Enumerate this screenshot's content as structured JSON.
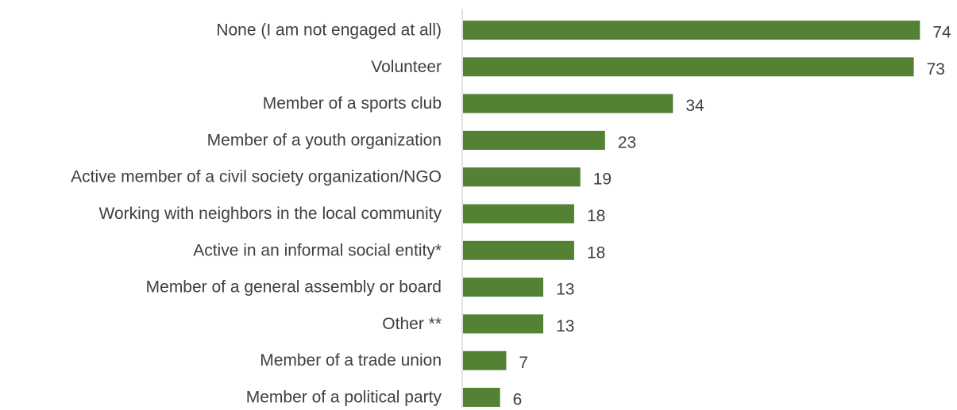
{
  "chart_data": {
    "type": "bar",
    "orientation": "horizontal",
    "categories": [
      "None (I am not engaged at all)",
      "Volunteer",
      "Member of a sports club",
      "Member of a youth organization",
      "Active member of a civil society organization/NGO",
      "Working with neighbors in the local community",
      "Active in an informal social entity*",
      "Member of a general assembly or board",
      "Other **",
      "Member of a trade union",
      "Member of a political party"
    ],
    "values": [
      74,
      73,
      34,
      23,
      19,
      18,
      18,
      13,
      13,
      7,
      6
    ],
    "title": "",
    "xlabel": "",
    "ylabel": "",
    "xlim": [
      0,
      80
    ],
    "grid": false,
    "legend": "none",
    "data_labels": true
  },
  "colors": {
    "bar": "#548235",
    "axis": "#d9d9d9",
    "text": "#404040"
  }
}
